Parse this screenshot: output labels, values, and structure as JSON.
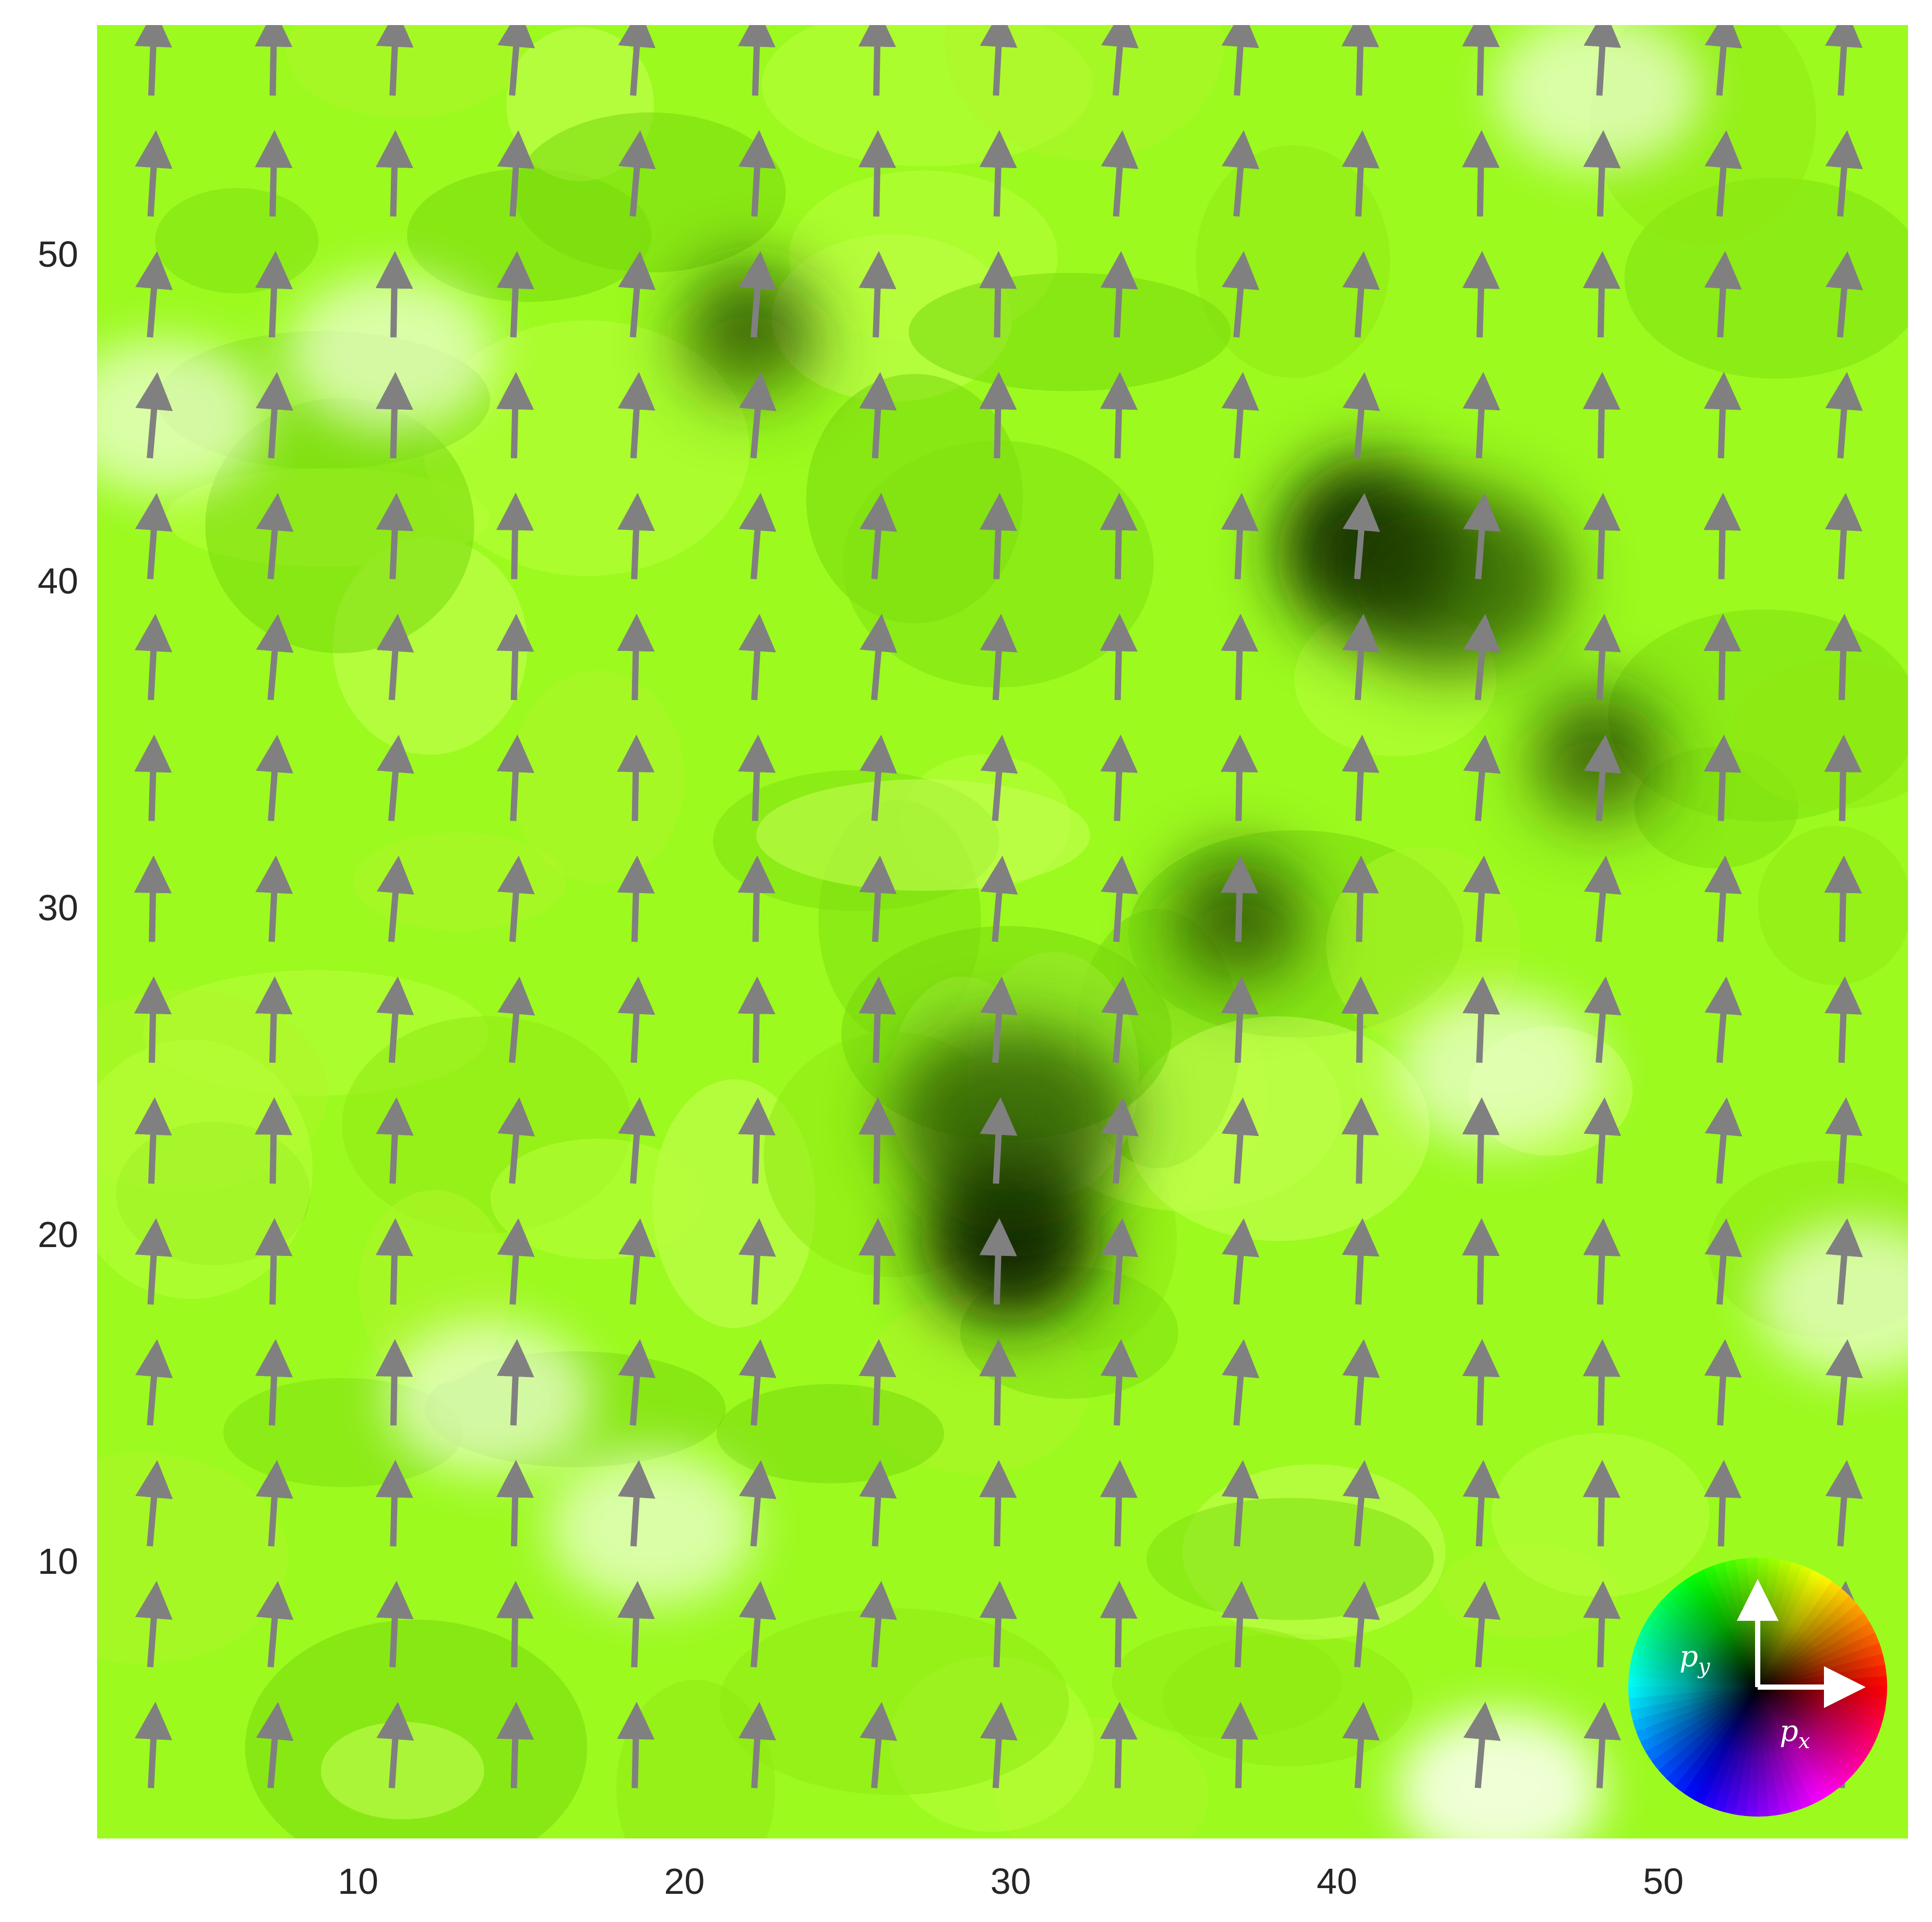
{
  "chart_data": {
    "type": "heatmap",
    "subtype": "vector-field-quiver",
    "title": "",
    "xlabel": "",
    "ylabel": "",
    "xlim": [
      2,
      57.5
    ],
    "ylim": [
      1.5,
      57
    ],
    "x_ticks": [
      10,
      20,
      30,
      40,
      50
    ],
    "y_ticks": [
      10,
      20,
      30,
      40,
      50
    ],
    "x_tick_labels": [
      "10",
      "20",
      "30",
      "40",
      "50"
    ],
    "y_tick_labels": [
      "10",
      "20",
      "30",
      "40",
      "50"
    ],
    "grid": false,
    "colormap": "2D polarization hue wheel (direction = hue, magnitude = lightness)",
    "background_color": "#9cfa1e",
    "arrow_color": "#808080",
    "arrows": {
      "x": [
        3.7,
        7.4,
        11.1,
        14.8,
        18.5,
        22.2,
        25.9,
        29.6,
        33.3,
        37.0,
        40.7,
        44.4,
        48.1,
        51.8,
        55.5
      ],
      "y": [
        4.0,
        7.7,
        11.4,
        15.1,
        18.8,
        22.5,
        26.2,
        29.9,
        33.6,
        37.3,
        41.0,
        44.7,
        48.4,
        52.1,
        55.8
      ],
      "direction": "predominantly +p_y with slight tilt toward +p_x",
      "typical_angle_deg_from_vertical": 5
    },
    "dark_regions": [
      {
        "x": 41,
        "y": 41
      },
      {
        "x": 30,
        "y": 20
      },
      {
        "x": 22,
        "y": 48
      },
      {
        "x": 48,
        "y": 35
      },
      {
        "x": 37,
        "y": 30
      }
    ],
    "light_regions": [
      {
        "x": 45,
        "y": 3
      },
      {
        "x": 48,
        "y": 55
      },
      {
        "x": 56,
        "y": 18
      },
      {
        "x": 45,
        "y": 25
      },
      {
        "x": 14,
        "y": 15
      },
      {
        "x": 11,
        "y": 47
      },
      {
        "x": 4,
        "y": 45
      },
      {
        "x": 19,
        "y": 11
      }
    ],
    "legend": {
      "position": "bottom-right",
      "type": "color-wheel",
      "axes": [
        "p_x",
        "p_y"
      ],
      "px_label": "p",
      "px_sub": "x",
      "py_label": "p",
      "py_sub": "y"
    }
  }
}
